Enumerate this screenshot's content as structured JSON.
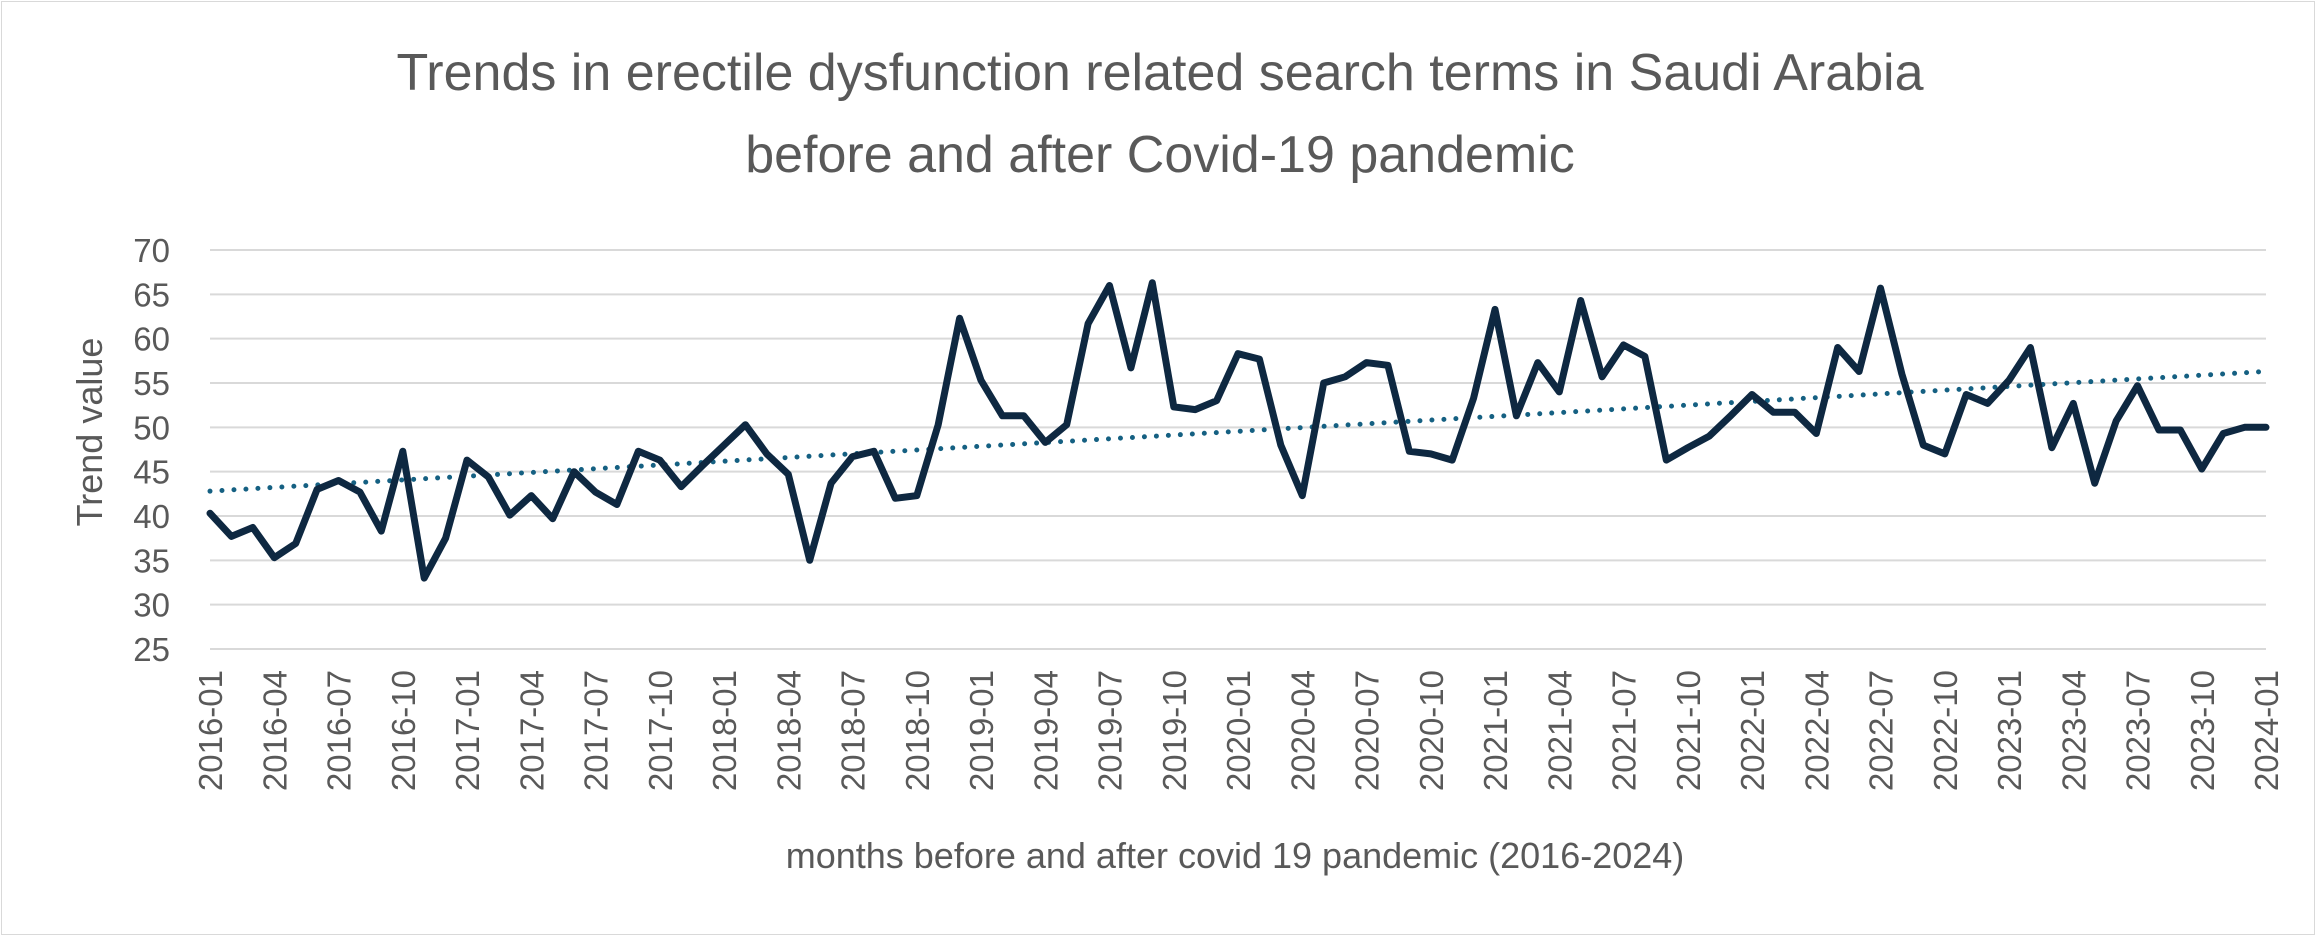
{
  "chart_data": {
    "type": "line",
    "title_line1": "Trends in erectile dysfunction related search terms in Saudi Arabia",
    "title_line2": "before and after Covid-19 pandemic",
    "xlabel": "months before and after covid 19 pandemic (2016-2024)",
    "ylabel": "Trend value",
    "ylim": [
      25,
      70
    ],
    "yticks": [
      25,
      30,
      35,
      40,
      45,
      50,
      55,
      60,
      65,
      70
    ],
    "grid": true,
    "legend": "none",
    "x_tick_labels": [
      "2016-01",
      "2016-04",
      "2016-07",
      "2016-10",
      "2017-01",
      "2017-04",
      "2017-07",
      "2017-10",
      "2018-01",
      "2018-04",
      "2018-07",
      "2018-10",
      "2019-01",
      "2019-04",
      "2019-07",
      "2019-10",
      "2020-01",
      "2020-04",
      "2020-07",
      "2020-10",
      "2021-01",
      "2021-04",
      "2021-07",
      "2021-10",
      "2022-01",
      "2022-04",
      "2022-07",
      "2022-10",
      "2023-01",
      "2023-04",
      "2023-07",
      "2023-10",
      "2024-01"
    ],
    "x": [
      "2016-01",
      "2016-02",
      "2016-03",
      "2016-04",
      "2016-05",
      "2016-06",
      "2016-07",
      "2016-08",
      "2016-09",
      "2016-10",
      "2016-11",
      "2016-12",
      "2017-01",
      "2017-02",
      "2017-03",
      "2017-04",
      "2017-05",
      "2017-06",
      "2017-07",
      "2017-08",
      "2017-09",
      "2017-10",
      "2017-11",
      "2017-12",
      "2018-01",
      "2018-02",
      "2018-03",
      "2018-04",
      "2018-05",
      "2018-06",
      "2018-07",
      "2018-08",
      "2018-09",
      "2018-10",
      "2018-11",
      "2018-12",
      "2019-01",
      "2019-02",
      "2019-03",
      "2019-04",
      "2019-05",
      "2019-06",
      "2019-07",
      "2019-08",
      "2019-09",
      "2019-10",
      "2019-11",
      "2019-12",
      "2020-01",
      "2020-02",
      "2020-03",
      "2020-04",
      "2020-05",
      "2020-06",
      "2020-07",
      "2020-08",
      "2020-09",
      "2020-10",
      "2020-11",
      "2020-12",
      "2021-01",
      "2021-02",
      "2021-03",
      "2021-04",
      "2021-05",
      "2021-06",
      "2021-07",
      "2021-08",
      "2021-09",
      "2021-10",
      "2021-11",
      "2021-12",
      "2022-01",
      "2022-02",
      "2022-03",
      "2022-04",
      "2022-05",
      "2022-06",
      "2022-07",
      "2022-08",
      "2022-09",
      "2022-10",
      "2022-11",
      "2022-12",
      "2023-01",
      "2023-02",
      "2023-03",
      "2023-04",
      "2023-05",
      "2023-06",
      "2023-07",
      "2023-08",
      "2023-09",
      "2023-10",
      "2023-11",
      "2023-12",
      "2024-01"
    ],
    "series": [
      {
        "color": "#0e2841",
        "values": [
          40.3,
          37.7,
          38.7,
          35.3,
          36.9,
          43.0,
          44.0,
          42.7,
          38.3,
          47.3,
          33.0,
          37.5,
          46.3,
          44.4,
          40.1,
          42.3,
          39.7,
          45.0,
          42.7,
          41.3,
          47.3,
          46.3,
          43.3,
          45.7,
          48.0,
          50.3,
          47.0,
          44.7,
          35.0,
          43.7,
          46.7,
          47.3,
          42.0,
          42.3,
          50.3,
          62.3,
          55.3,
          51.3,
          51.3,
          48.3,
          50.3,
          61.7,
          66.0,
          56.7,
          66.3,
          52.3,
          52.0,
          53.0,
          58.3,
          57.7,
          48.0,
          42.3,
          55.0,
          55.7,
          57.3,
          57.0,
          47.3,
          47.0,
          46.3,
          53.3,
          63.3,
          51.3,
          57.3,
          54.0,
          64.3,
          55.7,
          59.3,
          58.0,
          46.3,
          47.7,
          49.0,
          51.3,
          53.7,
          51.7,
          51.7,
          49.3,
          59.0,
          56.3,
          65.7,
          56.0,
          48.0,
          47.0,
          53.7,
          52.7,
          55.3,
          59.0,
          47.7,
          52.7,
          43.7,
          50.7,
          54.7,
          49.7,
          49.7,
          45.3,
          49.3,
          50.0,
          50.0
        ]
      }
    ],
    "trendline": {
      "type": "linear",
      "style": "dotted",
      "color": "#156082",
      "start": 42.8,
      "end": 56.3
    }
  }
}
